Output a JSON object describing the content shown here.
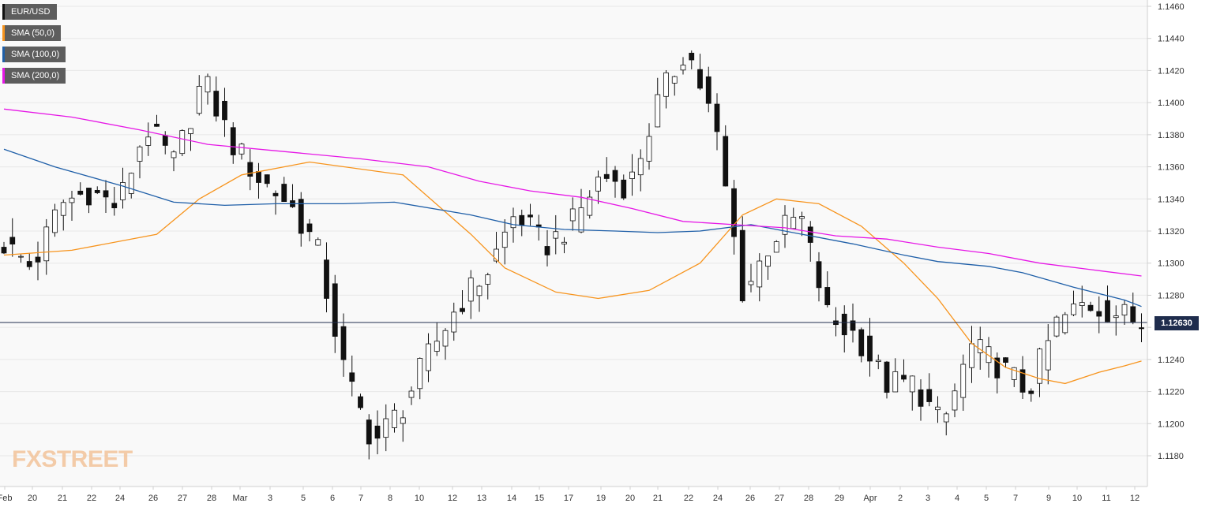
{
  "legend": [
    {
      "label": "EUR/USD",
      "color": "#111111"
    },
    {
      "label": "SMA (50,0)",
      "color": "#f7941d"
    },
    {
      "label": "SMA (100,0)",
      "color": "#1f5fa8"
    },
    {
      "label": "SMA (200,0)",
      "color": "#e617e6"
    }
  ],
  "watermark": {
    "part1": "FX",
    "part2": "STREET"
  },
  "current_price": {
    "label": "1.12630",
    "value": 1.1263
  },
  "chart_data": {
    "type": "candlestick",
    "instrument": "EUR/USD",
    "ylim": [
      1.1168,
      1.1462
    ],
    "y_ticks": [
      "1.1180",
      "1.1200",
      "1.1220",
      "1.1240",
      "1.1260",
      "1.1280",
      "1.1300",
      "1.1320",
      "1.1340",
      "1.1360",
      "1.1380",
      "1.1400",
      "1.1420",
      "1.1440",
      "1.1460"
    ],
    "y_tick_values": [
      1.118,
      1.12,
      1.122,
      1.124,
      1.126,
      1.128,
      1.13,
      1.132,
      1.134,
      1.136,
      1.138,
      1.14,
      1.142,
      1.144,
      1.146
    ],
    "x_ticks": [
      "Feb",
      "20",
      "21",
      "22",
      "24",
      "26",
      "27",
      "28",
      "Mar",
      "3",
      "5",
      "6",
      "7",
      "8",
      "10",
      "12",
      "13",
      "14",
      "15",
      "17",
      "19",
      "20",
      "21",
      "22",
      "24",
      "26",
      "27",
      "28",
      "29",
      "Apr",
      "2",
      "3",
      "4",
      "5",
      "7",
      "9",
      "10",
      "11",
      "12"
    ],
    "grid": true,
    "key_closes": [
      1.1312,
      1.1297,
      1.1337,
      1.1345,
      1.1335,
      1.1385,
      1.1362,
      1.1415,
      1.1375,
      1.1352,
      1.1338,
      1.131,
      1.123,
      1.1188,
      1.121,
      1.1245,
      1.1275,
      1.1295,
      1.1332,
      1.131,
      1.1325,
      1.1355,
      1.1348,
      1.14,
      1.1435,
      1.1385,
      1.128,
      1.1315,
      1.133,
      1.1265,
      1.1255,
      1.1225,
      1.1225,
      1.1198,
      1.1248,
      1.1236,
      1.122,
      1.1262,
      1.1275,
      1.127,
      1.1263
    ],
    "series": [
      {
        "name": "SMA (50,0)",
        "color": "#f7941d",
        "points": [
          [
            0,
            1.1305
          ],
          [
            8,
            1.1308
          ],
          [
            18,
            1.1318
          ],
          [
            23,
            1.134
          ],
          [
            28,
            1.1355
          ],
          [
            36,
            1.1363
          ],
          [
            47,
            1.1355
          ],
          [
            55,
            1.1318
          ],
          [
            59,
            1.1297
          ],
          [
            65,
            1.1282
          ],
          [
            70,
            1.1278
          ],
          [
            76,
            1.1283
          ],
          [
            82,
            1.13
          ],
          [
            87,
            1.133
          ],
          [
            91,
            1.134
          ],
          [
            96,
            1.1337
          ],
          [
            101,
            1.1323
          ],
          [
            106,
            1.13
          ],
          [
            110,
            1.1278
          ],
          [
            114,
            1.125
          ],
          [
            118,
            1.1235
          ],
          [
            122,
            1.1228
          ],
          [
            125,
            1.1225
          ],
          [
            129,
            1.1232
          ],
          [
            132,
            1.1236
          ],
          [
            134,
            1.1239
          ]
        ]
      },
      {
        "name": "SMA (100,0)",
        "color": "#1f5fa8",
        "points": [
          [
            0,
            1.1371
          ],
          [
            6,
            1.136
          ],
          [
            14,
            1.1348
          ],
          [
            20,
            1.1338
          ],
          [
            26,
            1.1336
          ],
          [
            32,
            1.1337
          ],
          [
            40,
            1.1337
          ],
          [
            46,
            1.1338
          ],
          [
            55,
            1.133
          ],
          [
            60,
            1.1324
          ],
          [
            66,
            1.1321
          ],
          [
            72,
            1.132
          ],
          [
            77,
            1.1319
          ],
          [
            82,
            1.132
          ],
          [
            88,
            1.1324
          ],
          [
            94,
            1.1318
          ],
          [
            100,
            1.1312
          ],
          [
            106,
            1.1305
          ],
          [
            110,
            1.1301
          ],
          [
            116,
            1.1298
          ],
          [
            120,
            1.1294
          ],
          [
            126,
            1.1285
          ],
          [
            132,
            1.1277
          ],
          [
            134,
            1.1273
          ]
        ]
      },
      {
        "name": "SMA (200,0)",
        "color": "#e617e6",
        "points": [
          [
            0,
            1.1396
          ],
          [
            8,
            1.1391
          ],
          [
            16,
            1.1383
          ],
          [
            24,
            1.1374
          ],
          [
            32,
            1.137
          ],
          [
            42,
            1.1365
          ],
          [
            50,
            1.136
          ],
          [
            56,
            1.1351
          ],
          [
            62,
            1.1345
          ],
          [
            68,
            1.1341
          ],
          [
            74,
            1.1334
          ],
          [
            80,
            1.1326
          ],
          [
            86,
            1.1324
          ],
          [
            92,
            1.1322
          ],
          [
            98,
            1.1317
          ],
          [
            104,
            1.1315
          ],
          [
            110,
            1.131
          ],
          [
            116,
            1.1306
          ],
          [
            122,
            1.13
          ],
          [
            128,
            1.1296
          ],
          [
            134,
            1.1292
          ]
        ]
      }
    ]
  }
}
